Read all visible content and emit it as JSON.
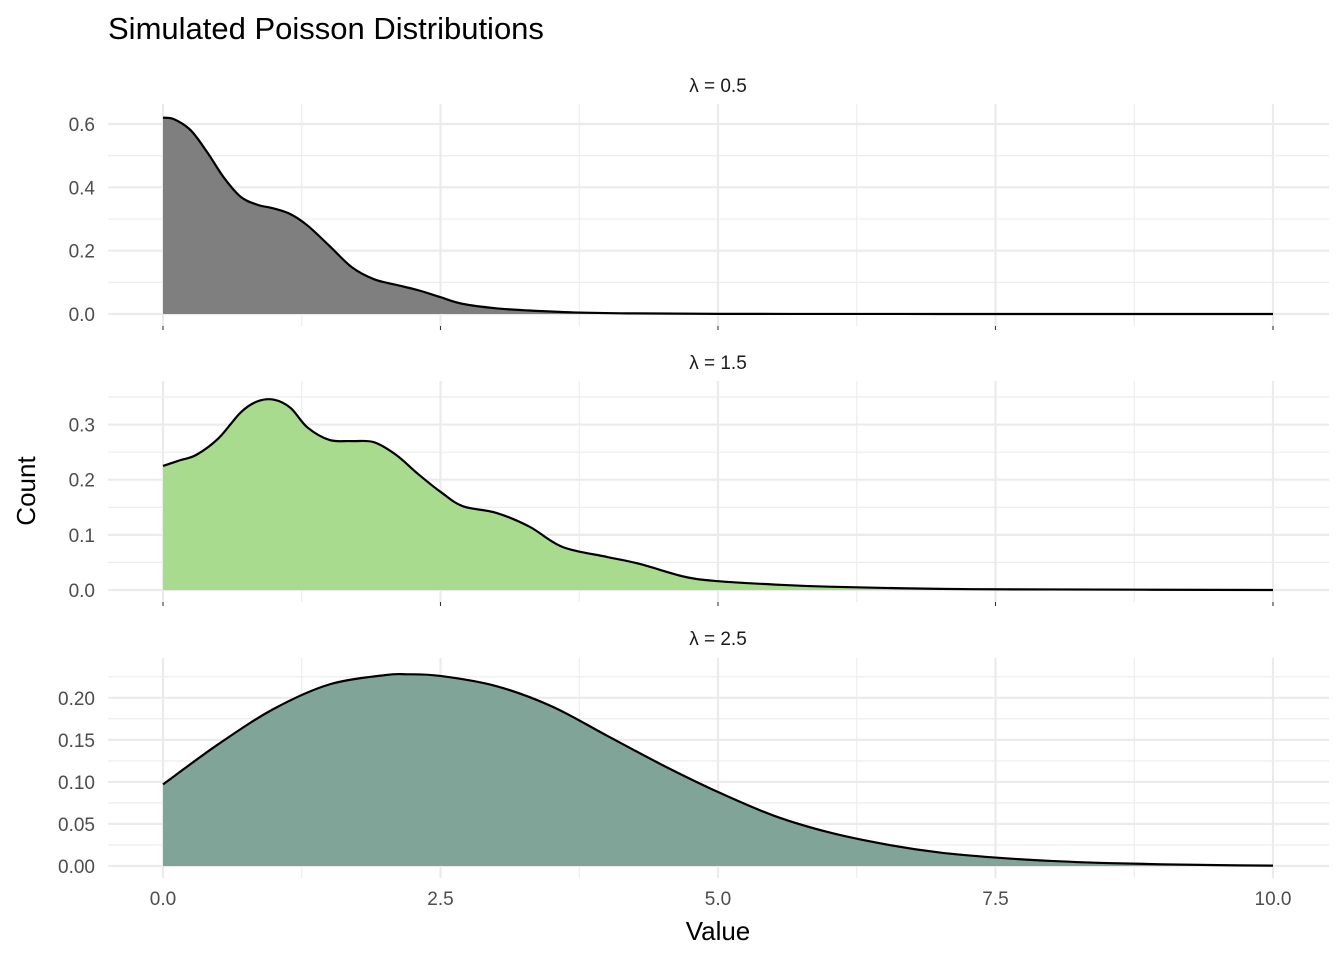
{
  "chart_data": {
    "type": "area",
    "title": "Simulated Poisson Distributions",
    "xlabel": "Value",
    "ylabel": "Count",
    "grid": true,
    "xlim": [
      0,
      10
    ],
    "x_ticks": [
      0,
      2.5,
      5,
      7.5,
      10
    ],
    "x_tick_labels": [
      "0.0",
      "2.5",
      "5.0",
      "7.5",
      "10.0"
    ],
    "panels": [
      {
        "label": "λ = 0.5",
        "fill": "#7f7f7f",
        "ylim": [
          0,
          0.63
        ],
        "y_ticks": [
          0,
          0.2,
          0.4,
          0.6
        ],
        "y_tick_labels": [
          "0.0",
          "0.2",
          "0.4",
          "0.6"
        ],
        "x": [
          0,
          0.1,
          0.25,
          0.4,
          0.55,
          0.7,
          0.85,
          1.0,
          1.15,
          1.3,
          1.5,
          1.7,
          1.9,
          2.1,
          2.3,
          2.5,
          2.7,
          3.0,
          3.3,
          3.7,
          4.2,
          5,
          6,
          7,
          8,
          10
        ],
        "y": [
          0.62,
          0.615,
          0.58,
          0.51,
          0.43,
          0.37,
          0.345,
          0.333,
          0.315,
          0.28,
          0.215,
          0.148,
          0.11,
          0.092,
          0.075,
          0.053,
          0.032,
          0.018,
          0.011,
          0.005,
          0.002,
          0.0005,
          0.0002,
          0.0001,
          0.0,
          0.0
        ]
      },
      {
        "label": "λ = 1.5",
        "fill": "#a8db8e",
        "ylim": [
          0,
          0.36
        ],
        "y_ticks": [
          0,
          0.1,
          0.2,
          0.3
        ],
        "y_tick_labels": [
          "0.0",
          "0.1",
          "0.2",
          "0.3"
        ],
        "x": [
          0,
          0.15,
          0.3,
          0.5,
          0.7,
          0.85,
          1.0,
          1.15,
          1.3,
          1.5,
          1.7,
          1.9,
          2.1,
          2.3,
          2.5,
          2.7,
          3.0,
          3.3,
          3.6,
          4.0,
          4.3,
          4.7,
          5.0,
          5.5,
          6.0,
          7.0,
          8.0,
          10.0
        ],
        "y": [
          0.225,
          0.235,
          0.245,
          0.275,
          0.322,
          0.342,
          0.345,
          0.33,
          0.295,
          0.272,
          0.27,
          0.268,
          0.245,
          0.21,
          0.178,
          0.152,
          0.14,
          0.115,
          0.078,
          0.06,
          0.047,
          0.024,
          0.016,
          0.01,
          0.006,
          0.002,
          0.001,
          0.0
        ]
      },
      {
        "label": "λ = 2.5",
        "fill": "#80a598",
        "ylim": [
          0,
          0.235
        ],
        "y_ticks": [
          0,
          0.05,
          0.1,
          0.15,
          0.2
        ],
        "y_tick_labels": [
          "0.00",
          "0.05",
          "0.10",
          "0.15",
          "0.20"
        ],
        "x": [
          0,
          0.5,
          1.0,
          1.5,
          2.0,
          2.2,
          2.5,
          3.0,
          3.5,
          4.0,
          4.5,
          5.0,
          5.5,
          6.0,
          6.5,
          7.0,
          7.5,
          8.0,
          8.5,
          9.0,
          9.5,
          10.0
        ],
        "y": [
          0.097,
          0.145,
          0.187,
          0.216,
          0.227,
          0.228,
          0.226,
          0.214,
          0.19,
          0.155,
          0.12,
          0.088,
          0.06,
          0.04,
          0.026,
          0.016,
          0.01,
          0.006,
          0.0035,
          0.002,
          0.001,
          0.0004
        ]
      }
    ]
  }
}
